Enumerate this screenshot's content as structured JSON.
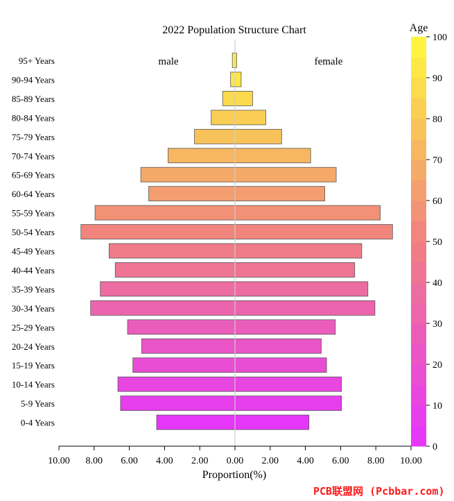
{
  "chart_data": {
    "type": "bar",
    "orientation": "horizontal-diverging",
    "title": "2022 Population Structure Chart",
    "xlabel": "Proportion(%)",
    "xlim": [
      -10,
      10
    ],
    "x_ticks": [
      -10,
      -8,
      -6,
      -4,
      -2,
      0,
      2,
      4,
      6,
      8,
      10
    ],
    "x_tick_labels": [
      "10.00",
      "8.00",
      "6.00",
      "4.00",
      "2.00",
      "0.00",
      "2.00",
      "4.00",
      "6.00",
      "8.00",
      "10.00"
    ],
    "categories": [
      "95+ Years",
      "90-94 Years",
      "85-89 Years",
      "80-84 Years",
      "75-79 Years",
      "70-74 Years",
      "65-69 Years",
      "60-64 Years",
      "55-59 Years",
      "50-54 Years",
      "45-49 Years",
      "40-44 Years",
      "35-39 Years",
      "30-34 Years",
      "25-29 Years",
      "20-24 Years",
      "15-19 Years",
      "10-14 Years",
      "5-9 Years",
      "0-4 Years"
    ],
    "age_values": [
      97,
      92,
      87,
      82,
      77,
      72,
      67,
      62,
      57,
      52,
      47,
      42,
      37,
      32,
      27,
      22,
      17,
      12,
      7,
      2
    ],
    "series": [
      {
        "name": "male",
        "values": [
          0.15,
          0.25,
          0.7,
          1.35,
          2.3,
          3.8,
          5.35,
          4.9,
          7.95,
          8.75,
          7.15,
          6.8,
          7.65,
          8.2,
          6.1,
          5.3,
          5.8,
          6.65,
          6.5,
          4.45
        ]
      },
      {
        "name": "female",
        "values": [
          0.1,
          0.35,
          1.0,
          1.75,
          2.65,
          4.3,
          5.75,
          5.1,
          8.25,
          8.95,
          7.2,
          6.8,
          7.55,
          7.95,
          5.7,
          4.9,
          5.2,
          6.05,
          6.05,
          4.2
        ]
      }
    ],
    "colorbar": {
      "title": "Age",
      "range": [
        0,
        100
      ],
      "ticks": [
        0,
        10,
        20,
        30,
        40,
        50,
        60,
        70,
        80,
        90,
        100
      ],
      "tick_labels": [
        "0",
        "10",
        "20",
        "30",
        "40",
        "50",
        "60",
        "70",
        "80",
        "90",
        "100"
      ],
      "steps": 20,
      "color_low": "#e633ff",
      "color_mid": "#f08080",
      "color_high": "#fffa3c"
    },
    "grid": false,
    "zero_line_color": "#cccccc"
  },
  "watermark_text": "PCB联盟网 (Pcbbar.com)"
}
